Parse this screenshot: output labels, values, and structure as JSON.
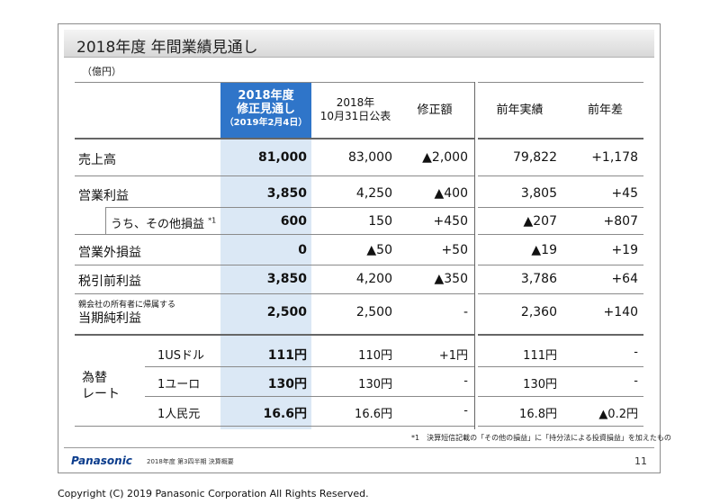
{
  "slide": {
    "title": "2018年度 年間業績見通し",
    "unit": "（億円）",
    "headers": {
      "revised_line1": "2018年度",
      "revised_line2": "修正見通し",
      "revised_line3": "（2019年2月4日）",
      "prev_line1": "2018年",
      "prev_line2": "10月31日公表",
      "diff": "修正額",
      "last_year": "前年実績",
      "yoy": "前年差"
    },
    "rows": [
      {
        "label": "売上高",
        "revised": "81,000",
        "prev": "83,000",
        "diff": "▲2,000",
        "last_year": "79,822",
        "yoy": "+1,178"
      },
      {
        "label": "営業利益",
        "revised": "3,850",
        "prev": "4,250",
        "diff": "▲400",
        "last_year": "3,805",
        "yoy": "+45"
      },
      {
        "label": "うち、その他損益",
        "note": "*1",
        "revised": "600",
        "prev": "150",
        "diff": "+450",
        "last_year": "▲207",
        "yoy": "+807"
      },
      {
        "label": "営業外損益",
        "revised": "0",
        "prev": "▲50",
        "diff": "+50",
        "last_year": "▲19",
        "yoy": "+19"
      },
      {
        "label": "税引前利益",
        "revised": "3,850",
        "prev": "4,200",
        "diff": "▲350",
        "last_year": "3,786",
        "yoy": "+64"
      },
      {
        "label_small": "親会社の所有者に帰属する",
        "label": "当期純利益",
        "revised": "2,500",
        "prev": "2,500",
        "diff": "-",
        "last_year": "2,360",
        "yoy": "+140"
      }
    ],
    "fx_label_1": "為替",
    "fx_label_2": "レート",
    "fx_rows": [
      {
        "currency": "1USドル",
        "revised": "111円",
        "prev": "110円",
        "diff": "+1円",
        "last_year": "111円",
        "yoy": "-"
      },
      {
        "currency": "1ユーロ",
        "revised": "130円",
        "prev": "130円",
        "diff": "-",
        "last_year": "130円",
        "yoy": "-"
      },
      {
        "currency": "1人民元",
        "revised": "16.6円",
        "prev": "16.6円",
        "diff": "-",
        "last_year": "16.8円",
        "yoy": "▲0.2円"
      }
    ],
    "footnote": "*1　決算短信記載の「その他の損益」に「持分法による投資損益」を加えたもの",
    "footer": {
      "logo": "Panasonic",
      "subtitle": "2018年度 第3四半期 決算概要",
      "page": "11"
    },
    "colors": {
      "accent": "#2f75c9",
      "highlight": "#dbe8f5"
    }
  },
  "copyright": "Copyright (C) 2019 Panasonic Corporation All Rights Reserved."
}
